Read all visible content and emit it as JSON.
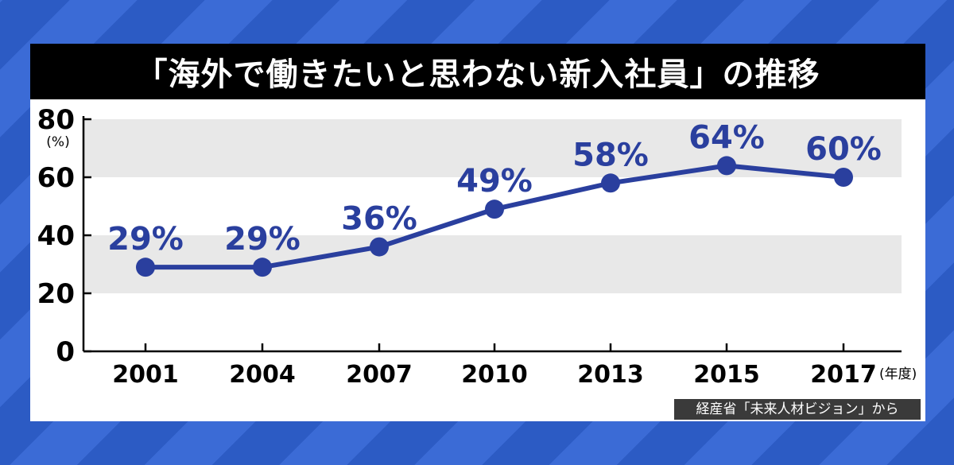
{
  "title": "「海外で働きたいと思わない新入社員」の推移",
  "source": "経産省「未来人材ビジョン」から",
  "chart_data": {
    "type": "line",
    "title": "「海外で働きたいと思わない新入社員」の推移",
    "categories": [
      "2001",
      "2004",
      "2007",
      "2010",
      "2013",
      "2015",
      "2017"
    ],
    "values": [
      29,
      29,
      36,
      49,
      58,
      64,
      60
    ],
    "data_labels": [
      "29%",
      "29%",
      "36%",
      "49%",
      "58%",
      "64%",
      "60%"
    ],
    "x_unit": "(年度)",
    "y_unit": "(%)",
    "yticks": [
      0,
      20,
      40,
      60,
      80
    ],
    "ylim": [
      0,
      80
    ],
    "grid": "alternating horizontal bands",
    "colors": {
      "line": "#2a3f9e",
      "band": "#e8e8e8",
      "title_bg": "#000000"
    }
  }
}
